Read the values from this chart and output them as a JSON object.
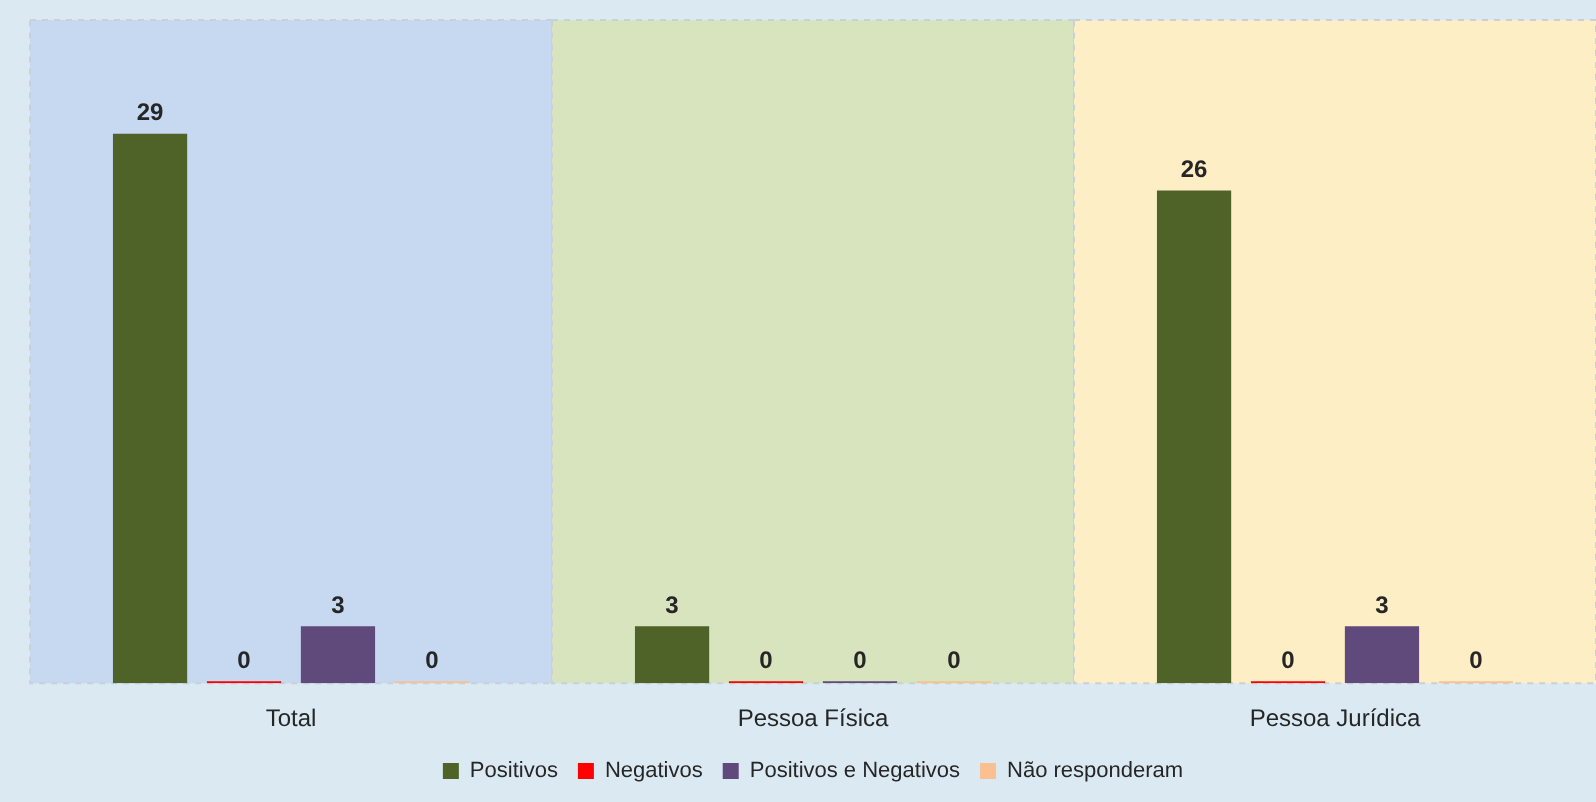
{
  "chart_data": {
    "type": "bar",
    "categories": [
      "Total",
      "Pessoa Física",
      "Pessoa Jurídica"
    ],
    "series": [
      {
        "name": "Positivos",
        "color": "#4f6228",
        "values": [
          29,
          3,
          26
        ]
      },
      {
        "name": "Negativos",
        "color": "#ff0000",
        "values": [
          0,
          0,
          0
        ]
      },
      {
        "name": "Positivos e Negativos",
        "color": "#604a7b",
        "values": [
          3,
          0,
          3
        ]
      },
      {
        "name": "Não responderam",
        "color": "#fac090",
        "values": [
          0,
          0,
          0
        ]
      }
    ],
    "bands": [
      {
        "axis": "x",
        "from": "Total",
        "to": "Total",
        "color": "#c6d9f1"
      },
      {
        "axis": "x",
        "from": "Pessoa Física",
        "to": "Pessoa Física",
        "color": "#d7e4bd"
      },
      {
        "axis": "x",
        "from": "Pessoa Jurídica",
        "to": "Pessoa Jurídica",
        "color": "#fdeec6"
      }
    ],
    "data_labels": true,
    "legend": "bottom"
  }
}
